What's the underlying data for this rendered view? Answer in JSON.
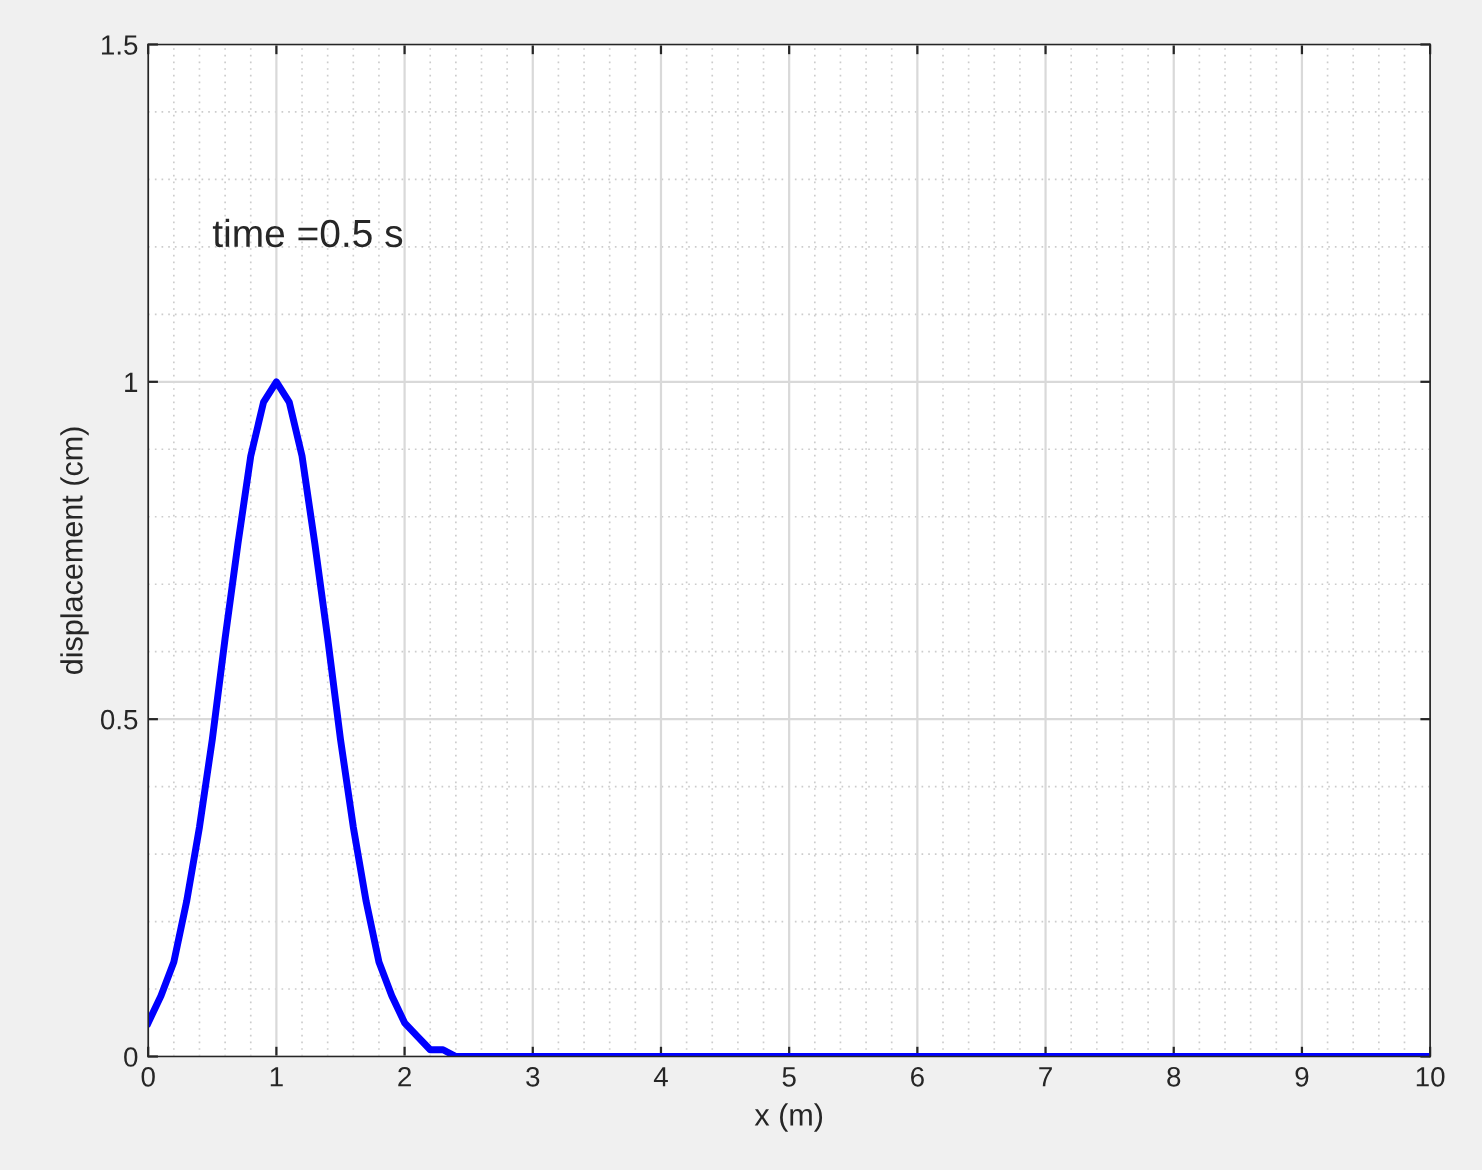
{
  "chart_data": {
    "type": "line",
    "xlabel": "x (m)",
    "ylabel": "displacement (cm)",
    "annotations": [
      "time =0.5 s"
    ],
    "x": [
      0,
      0.1,
      0.2,
      0.3,
      0.4,
      0.5,
      0.6,
      0.7,
      0.8,
      0.9,
      1.0,
      1.1,
      1.2,
      1.3,
      1.4,
      1.5,
      1.6,
      1.7,
      1.8,
      1.9,
      2.0,
      2.1,
      2.2,
      2.3,
      2.4,
      2.6,
      2.8,
      3,
      4,
      5,
      6,
      7,
      8,
      9,
      10
    ],
    "series": [
      {
        "color": "#0000ff",
        "values": [
          0.05,
          0.09,
          0.14,
          0.23,
          0.34,
          0.47,
          0.62,
          0.76,
          0.89,
          0.97,
          1.0,
          0.97,
          0.89,
          0.76,
          0.62,
          0.47,
          0.34,
          0.23,
          0.14,
          0.09,
          0.05,
          0.03,
          0.01,
          0.01,
          0.0,
          0.0,
          0.0,
          0.0,
          0.0,
          0.0,
          0.0,
          0.0,
          0.0,
          0.0,
          0.0
        ]
      }
    ],
    "xlim": [
      0,
      10
    ],
    "xticks": [
      0,
      1,
      2,
      3,
      4,
      5,
      6,
      7,
      8,
      9,
      10
    ],
    "ylim": [
      0,
      1.5
    ],
    "yticks": [
      0,
      0.5,
      1,
      1.5
    ],
    "grid": true,
    "marker": "none",
    "line_style": "solid"
  }
}
